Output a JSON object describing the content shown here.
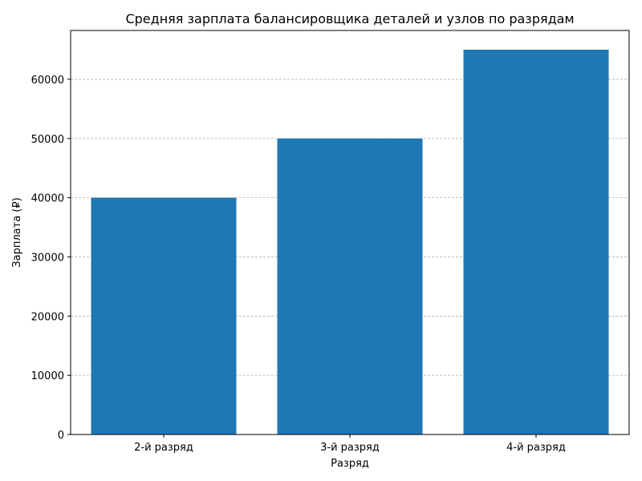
{
  "chart_data": {
    "type": "bar",
    "title": "Средняя зарплата балансировщика деталей и узлов по разрядам",
    "xlabel": "Разряд",
    "ylabel": "Зарплата (₽)",
    "categories": [
      "2-й разряд",
      "3-й разряд",
      "4-й разряд"
    ],
    "values": [
      40000,
      50000,
      65000
    ],
    "ylim": [
      0,
      68250
    ],
    "yticks": [
      0,
      10000,
      20000,
      30000,
      40000,
      50000,
      60000
    ],
    "grid": "y-dashed",
    "bar_color": "#1f77b4"
  }
}
